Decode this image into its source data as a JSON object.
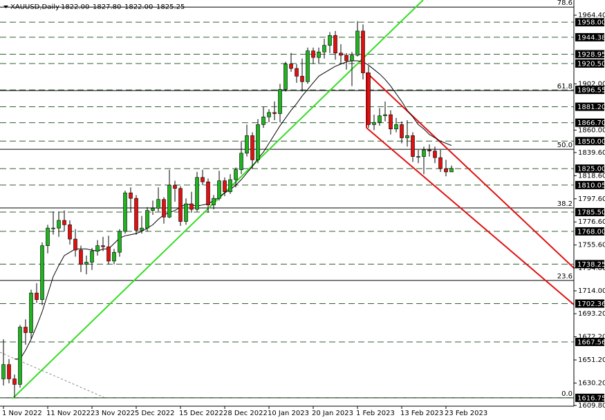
{
  "chart_data": {
    "type": "candlestick",
    "symbol": "XAUUSD,Daily",
    "header_prices": [
      "1822.00",
      "1827.80",
      "1822.00",
      "1825.25"
    ],
    "categories": [
      "1 Nov 2022",
      null,
      null,
      null,
      null,
      null,
      null,
      null,
      "11 Nov 2022",
      null,
      null,
      null,
      null,
      null,
      null,
      null,
      "23 Nov 2022",
      null,
      null,
      null,
      null,
      null,
      null,
      null,
      "5 Dec 2022",
      null,
      null,
      null,
      null,
      null,
      null,
      null,
      "15 Dec 2022",
      null,
      null,
      null,
      null,
      null,
      null,
      null,
      "28 Dec 2022",
      null,
      null,
      null,
      null,
      null,
      null,
      null,
      "10 Jan 2023",
      null,
      null,
      null,
      null,
      null,
      null,
      null,
      "20 Jan 2023",
      null,
      null,
      null,
      null,
      null,
      null,
      null,
      "1 Feb 2023",
      null,
      null,
      null,
      null,
      null,
      null,
      null,
      "13 Feb 2023",
      null,
      null,
      null,
      null,
      null,
      null,
      null,
      "23 Feb 2023",
      null
    ],
    "ohlc": [
      [
        1634,
        1670,
        1628,
        1647
      ],
      [
        1647,
        1652,
        1630,
        1634
      ],
      [
        1634,
        1638,
        1616.75,
        1629
      ],
      [
        1629,
        1683,
        1626,
        1681
      ],
      [
        1681,
        1688,
        1665,
        1676
      ],
      [
        1676,
        1715,
        1670,
        1712
      ],
      [
        1712,
        1721,
        1703,
        1706
      ],
      [
        1706,
        1758,
        1701,
        1755
      ],
      [
        1755,
        1774,
        1748,
        1771
      ],
      [
        1771,
        1786,
        1765,
        1771
      ],
      [
        1771,
        1786,
        1763,
        1778
      ],
      [
        1778,
        1787,
        1768,
        1774
      ],
      [
        1774,
        1778,
        1756,
        1761
      ],
      [
        1761,
        1770,
        1745,
        1751
      ],
      [
        1751,
        1755,
        1731,
        1738
      ],
      [
        1738,
        1746,
        1729,
        1740
      ],
      [
        1740,
        1753,
        1733,
        1750
      ],
      [
        1750,
        1760,
        1746,
        1755
      ],
      [
        1755,
        1763,
        1750,
        1754
      ],
      [
        1754,
        1764,
        1738,
        1741
      ],
      [
        1741,
        1752,
        1738,
        1749
      ],
      [
        1749,
        1770,
        1745,
        1768
      ],
      [
        1768,
        1805,
        1766,
        1803
      ],
      [
        1803,
        1808,
        1786,
        1798
      ],
      [
        1798,
        1801,
        1765,
        1769
      ],
      [
        1769,
        1782,
        1766,
        1771
      ],
      [
        1771,
        1790,
        1768,
        1787
      ],
      [
        1787,
        1796,
        1783,
        1789
      ],
      [
        1789,
        1808,
        1786,
        1797
      ],
      [
        1797,
        1799,
        1775,
        1781
      ],
      [
        1781,
        1824,
        1780,
        1810
      ],
      [
        1810,
        1814,
        1795,
        1807
      ],
      [
        1807,
        1809,
        1773,
        1777
      ],
      [
        1777,
        1798,
        1774,
        1793
      ],
      [
        1793,
        1804,
        1785,
        1788
      ],
      [
        1788,
        1822,
        1786,
        1817
      ],
      [
        1817,
        1824,
        1810,
        1813
      ],
      [
        1813,
        1816,
        1785,
        1792
      ],
      [
        1792,
        1801,
        1788,
        1798
      ],
      [
        1798,
        1823,
        1796,
        1814
      ],
      [
        1814,
        1817,
        1800,
        1804
      ],
      [
        1804,
        1820,
        1802,
        1815
      ],
      [
        1815,
        1826,
        1808,
        1824
      ],
      [
        1824,
        1850,
        1820,
        1839
      ],
      [
        1839,
        1865,
        1836,
        1855
      ],
      [
        1855,
        1858,
        1825,
        1833
      ],
      [
        1833,
        1870,
        1830,
        1865
      ],
      [
        1865,
        1881,
        1862,
        1872
      ],
      [
        1872,
        1879,
        1867,
        1876
      ],
      [
        1876,
        1886,
        1869,
        1875
      ],
      [
        1875,
        1902,
        1867,
        1897
      ],
      [
        1897,
        1922,
        1895,
        1920
      ],
      [
        1920,
        1930,
        1913,
        1916
      ],
      [
        1916,
        1920,
        1903,
        1909
      ],
      [
        1909,
        1925,
        1895,
        1904
      ],
      [
        1904,
        1935,
        1902,
        1932
      ],
      [
        1932,
        1935,
        1920,
        1926
      ],
      [
        1926,
        1935,
        1920,
        1931
      ],
      [
        1931,
        1943,
        1925,
        1937
      ],
      [
        1937,
        1949,
        1930,
        1946
      ],
      [
        1946,
        1950,
        1924,
        1930
      ],
      [
        1930,
        1938,
        1920,
        1928
      ],
      [
        1928,
        1930,
        1915,
        1923
      ],
      [
        1923,
        1931,
        1900,
        1928
      ],
      [
        1928,
        1959,
        1927,
        1950
      ],
      [
        1950,
        1956,
        1906,
        1912
      ],
      [
        1912,
        1918,
        1862,
        1865
      ],
      [
        1865,
        1874,
        1860,
        1867
      ],
      [
        1867,
        1880,
        1864,
        1873
      ],
      [
        1873,
        1886,
        1868,
        1874
      ],
      [
        1874,
        1878,
        1856,
        1861
      ],
      [
        1861,
        1871,
        1858,
        1865
      ],
      [
        1865,
        1868,
        1848,
        1853
      ],
      [
        1853,
        1869,
        1845,
        1855
      ],
      [
        1855,
        1858,
        1831,
        1836
      ],
      [
        1836,
        1842,
        1830,
        1836
      ],
      [
        1836,
        1845,
        1820,
        1842
      ],
      [
        1842,
        1847,
        1836,
        1841
      ],
      [
        1841,
        1845,
        1830,
        1835
      ],
      [
        1835,
        1842,
        1822,
        1825
      ],
      [
        1825,
        1833,
        1818,
        1822
      ],
      [
        1822,
        1827.8,
        1822,
        1825.25
      ]
    ],
    "ma": [
      null,
      null,
      1652,
      1652,
      1660,
      1670,
      1682,
      1695,
      1711,
      1727,
      1737,
      1746,
      1749,
      1752,
      1752,
      1752,
      1751,
      1750,
      1752,
      1752,
      1757,
      1762,
      1764,
      1765,
      1766,
      1768,
      1771,
      1774,
      1779,
      1783,
      1785,
      1787,
      1790,
      1793,
      1792,
      1791,
      1792,
      1793,
      1796,
      1799,
      1803,
      1806,
      1810,
      1815,
      1821,
      1827,
      1834,
      1840,
      1848,
      1856,
      1864,
      1871,
      1878,
      1884,
      1891,
      1897,
      1903,
      1909,
      1912,
      1915,
      1918,
      1920,
      1922,
      1923,
      1923,
      1922,
      1919,
      1915,
      1911,
      1906,
      1900,
      1893,
      1886,
      1878,
      1872,
      1865,
      1861,
      1856,
      1853,
      1850,
      1848,
      1846
    ],
    "bull_color": "#1fb41f",
    "bear_color": "#e01010",
    "ma_color": "#000000",
    "ylim": [
      1602.9,
      1978.2
    ],
    "yticks": [
      {
        "value": 1964.4,
        "label": "1964.40"
      },
      {
        "value": 1902,
        "label": "1902.00"
      },
      {
        "value": 1860,
        "label": "1860.00"
      },
      {
        "value": 1839.6,
        "label": "1839.60"
      },
      {
        "value": 1818.6,
        "label": "1818.60"
      },
      {
        "value": 1797.6,
        "label": "1797.60"
      },
      {
        "value": 1776.6,
        "label": "1776.60"
      },
      {
        "value": 1755.6,
        "label": "1755.60"
      },
      {
        "value": 1734.8,
        "label": "1734.80"
      },
      {
        "value": 1714,
        "label": "1714.00"
      },
      {
        "value": 1693.2,
        "label": "1693.20"
      },
      {
        "value": 1672.2,
        "label": "1672.20"
      },
      {
        "value": 1651.2,
        "label": "1651.20"
      },
      {
        "value": 1630.2,
        "label": "1630.20"
      },
      {
        "value": 1609.8,
        "label": "1609.80"
      }
    ],
    "levels": [
      {
        "value": 1958,
        "label": "1958.00"
      },
      {
        "value": 1944.38,
        "label": "1944.38"
      },
      {
        "value": 1928.95,
        "label": "1928.95"
      },
      {
        "value": 1920.5,
        "label": "1920.50"
      },
      {
        "value": 1896.55,
        "label": "1896.55"
      },
      {
        "value": 1881.2,
        "label": "1881.20"
      },
      {
        "value": 1866.7,
        "label": "1866.70"
      },
      {
        "value": 1850,
        "label": "1850.00"
      },
      {
        "value": 1825,
        "label": "1825.00"
      },
      {
        "value": 1810.05,
        "label": "1810.05"
      },
      {
        "value": 1785.5,
        "label": "1785.50"
      },
      {
        "value": 1768,
        "label": "1768.00"
      },
      {
        "value": 1738.25,
        "label": "1738.25"
      },
      {
        "value": 1702.36,
        "label": "1702.36"
      },
      {
        "value": 1667.56,
        "label": "1667.56"
      },
      {
        "value": 1616.75,
        "label": "1616.75"
      }
    ],
    "fib_levels": [
      {
        "value": 1971.8,
        "label": "78.6"
      },
      {
        "value": 1895.9,
        "label": "61.8"
      },
      {
        "value": 1842.6,
        "label": "50.0"
      },
      {
        "value": 1789.3,
        "label": "38.2"
      },
      {
        "value": 1723.4,
        "label": "23.6"
      },
      {
        "value": 1616.75,
        "label": "0.0"
      }
    ]
  }
}
